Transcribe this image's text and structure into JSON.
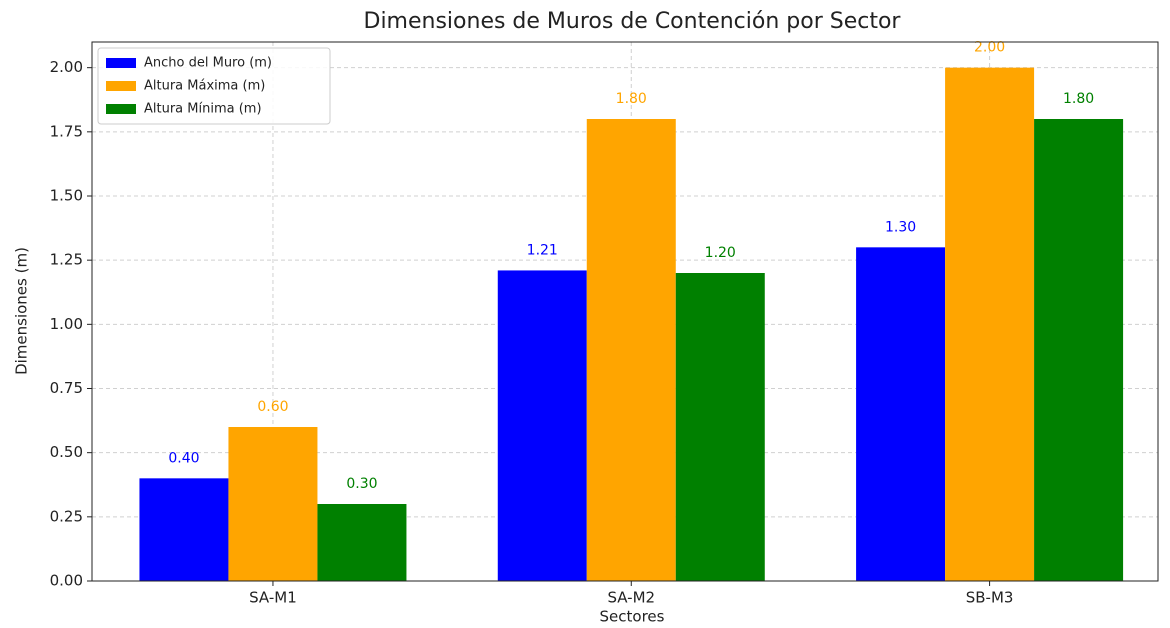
{
  "chart_data": {
    "type": "bar",
    "title": "Dimensiones de Muros de Contención por Sector",
    "xlabel": "Sectores",
    "ylabel": "Dimensiones (m)",
    "categories": [
      "SA-M1",
      "SA-M2",
      "SB-M3"
    ],
    "series": [
      {
        "name": "Ancho del Muro (m)",
        "color": "#0000ff",
        "values": [
          0.4,
          1.21,
          1.3
        ],
        "value_labels": [
          "0.40",
          "1.21",
          "1.30"
        ]
      },
      {
        "name": "Altura Máxima (m)",
        "color": "#ffa500",
        "values": [
          0.6,
          1.8,
          2.0
        ],
        "value_labels": [
          "0.60",
          "1.80",
          "2.00"
        ]
      },
      {
        "name": "Altura Mínima (m)",
        "color": "#008000",
        "values": [
          0.3,
          1.2,
          1.8
        ],
        "value_labels": [
          "0.30",
          "1.20",
          "1.80"
        ]
      }
    ],
    "ylim": [
      0,
      2.1
    ],
    "yticks": [
      {
        "value": 0,
        "label": "0.00"
      },
      {
        "value": 0.25,
        "label": "0.25"
      },
      {
        "value": 0.5,
        "label": "0.50"
      },
      {
        "value": 0.75,
        "label": "0.75"
      },
      {
        "value": 1,
        "label": "1.00"
      },
      {
        "value": 1.25,
        "label": "1.25"
      },
      {
        "value": 1.5,
        "label": "1.50"
      },
      {
        "value": 1.75,
        "label": "1.75"
      },
      {
        "value": 2,
        "label": "2.00"
      }
    ],
    "grid": true,
    "legend": "upper left"
  }
}
